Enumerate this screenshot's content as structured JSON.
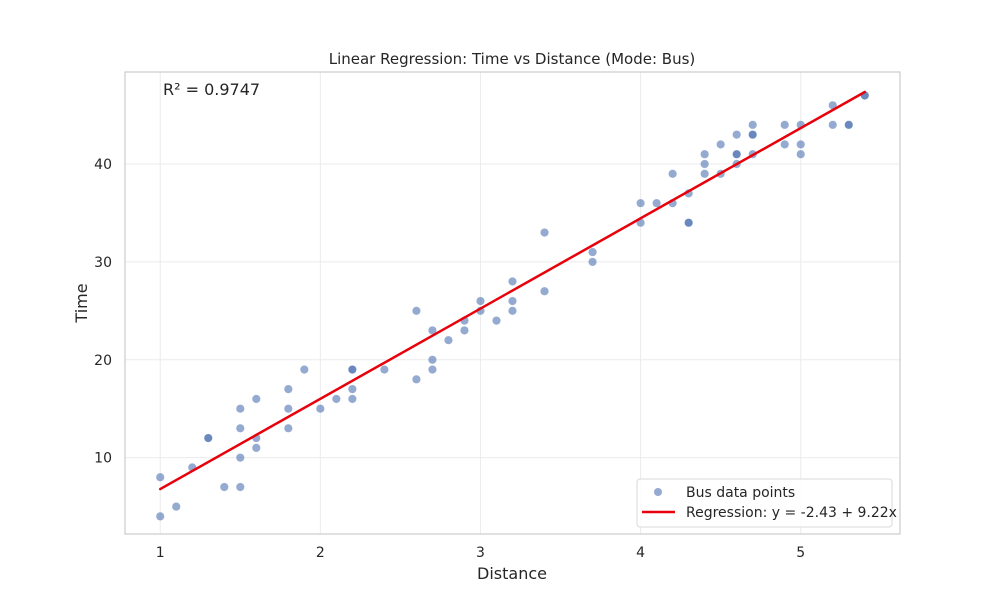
{
  "chart_data": {
    "type": "scatter",
    "title": "Linear Regression: Time vs Distance (Mode: Bus)",
    "xlabel": "Distance",
    "ylabel": "Time",
    "xlim": [
      0.78,
      5.62
    ],
    "ylim": [
      2.2,
      49.4
    ],
    "xticks": [
      1,
      2,
      3,
      4,
      5
    ],
    "yticks": [
      10,
      20,
      30,
      40
    ],
    "grid": true,
    "legend_position": "bottom-right",
    "annotation": "R² = 0.9747",
    "colors": {
      "points": "#4c72b0",
      "regression": "#e8000b"
    },
    "series": [
      {
        "name": "Bus data points",
        "kind": "scatter",
        "points": [
          [
            1.0,
            8
          ],
          [
            1.0,
            4
          ],
          [
            1.1,
            5
          ],
          [
            1.2,
            9
          ],
          [
            1.3,
            12
          ],
          [
            1.3,
            12
          ],
          [
            1.4,
            7
          ],
          [
            1.5,
            7
          ],
          [
            1.5,
            10
          ],
          [
            1.5,
            13
          ],
          [
            1.5,
            15
          ],
          [
            1.6,
            16
          ],
          [
            1.6,
            12
          ],
          [
            1.6,
            11
          ],
          [
            1.8,
            17
          ],
          [
            1.8,
            15
          ],
          [
            1.8,
            13
          ],
          [
            1.9,
            19
          ],
          [
            2.0,
            15
          ],
          [
            2.1,
            16
          ],
          [
            2.2,
            19
          ],
          [
            2.2,
            19
          ],
          [
            2.2,
            17
          ],
          [
            2.2,
            16
          ],
          [
            2.4,
            19
          ],
          [
            2.6,
            25
          ],
          [
            2.6,
            18
          ],
          [
            2.7,
            23
          ],
          [
            2.7,
            20
          ],
          [
            2.7,
            19
          ],
          [
            2.8,
            22
          ],
          [
            2.9,
            24
          ],
          [
            2.9,
            23
          ],
          [
            3.0,
            26
          ],
          [
            3.0,
            25
          ],
          [
            3.1,
            24
          ],
          [
            3.2,
            28
          ],
          [
            3.2,
            26
          ],
          [
            3.2,
            25
          ],
          [
            3.4,
            33
          ],
          [
            3.4,
            27
          ],
          [
            3.7,
            31
          ],
          [
            3.7,
            30
          ],
          [
            4.0,
            36
          ],
          [
            4.0,
            34
          ],
          [
            4.1,
            36
          ],
          [
            4.2,
            39
          ],
          [
            4.2,
            36
          ],
          [
            4.3,
            37
          ],
          [
            4.3,
            34
          ],
          [
            4.3,
            34
          ],
          [
            4.4,
            41
          ],
          [
            4.4,
            40
          ],
          [
            4.4,
            39
          ],
          [
            4.5,
            42
          ],
          [
            4.5,
            39
          ],
          [
            4.6,
            43
          ],
          [
            4.6,
            41
          ],
          [
            4.6,
            41
          ],
          [
            4.6,
            40
          ],
          [
            4.7,
            44
          ],
          [
            4.7,
            43
          ],
          [
            4.7,
            43
          ],
          [
            4.7,
            41
          ],
          [
            4.9,
            44
          ],
          [
            4.9,
            42
          ],
          [
            5.0,
            44
          ],
          [
            5.0,
            42
          ],
          [
            5.0,
            41
          ],
          [
            5.2,
            46
          ],
          [
            5.2,
            44
          ],
          [
            5.3,
            44
          ],
          [
            5.3,
            44
          ],
          [
            5.4,
            47
          ],
          [
            5.4,
            47
          ]
        ]
      },
      {
        "name": "Regression: y = -2.43 + 9.22x",
        "kind": "line",
        "intercept": -2.43,
        "slope": 9.22,
        "x_range": [
          1.0,
          5.4
        ]
      }
    ]
  }
}
